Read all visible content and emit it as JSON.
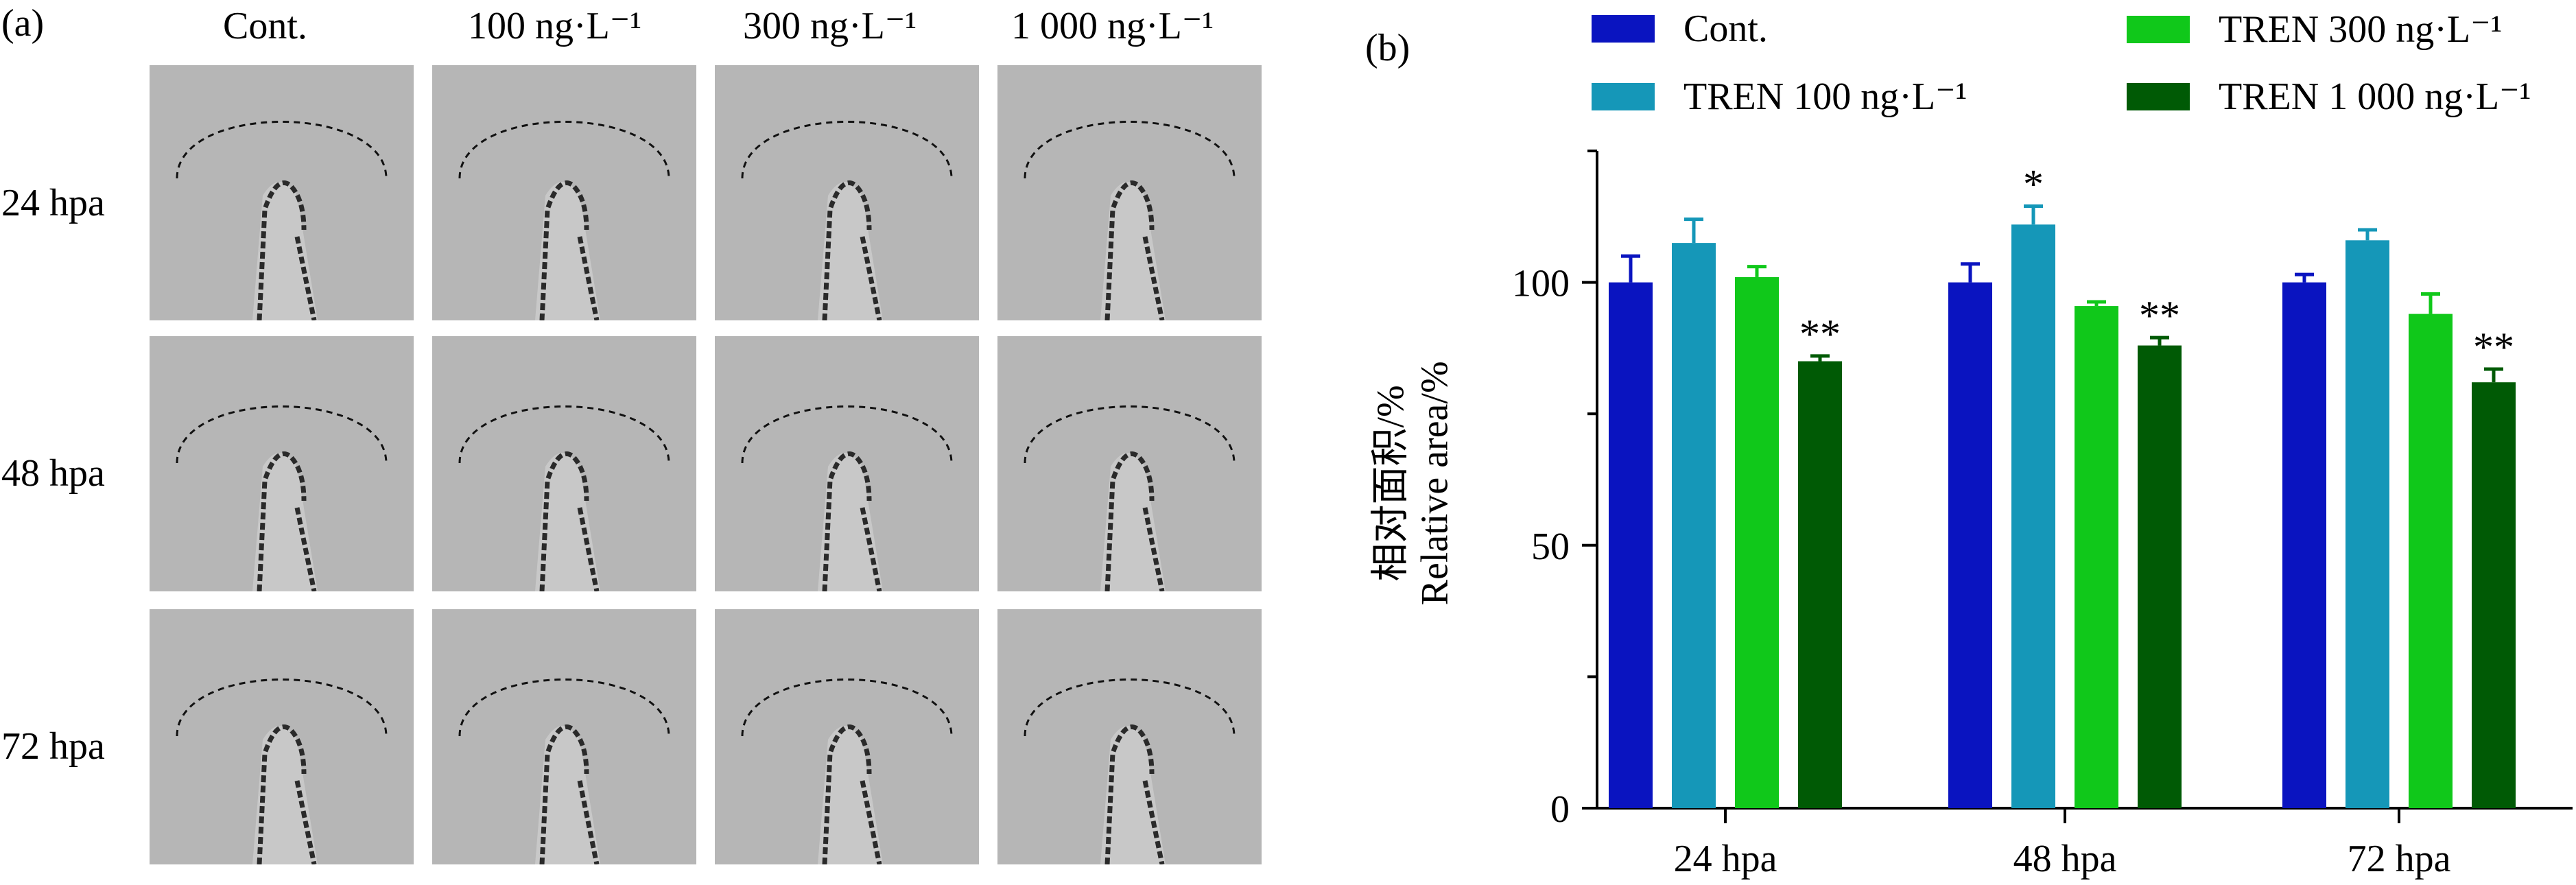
{
  "panel_a": {
    "label": "(a)",
    "columns": [
      "Cont.",
      "100 ng·L⁻¹",
      "300 ng·L⁻¹",
      "1 000 ng·L⁻¹"
    ],
    "rows": [
      "24 hpa",
      "48 hpa",
      "72 hpa"
    ]
  },
  "chart_data": {
    "panel_label": "(b)",
    "type": "bar",
    "categories": [
      "24 hpa",
      "48 hpa",
      "72 hpa"
    ],
    "ylabel_cn": "相对面积/%",
    "ylabel": "Relative area/%",
    "ylim": [
      0,
      125
    ],
    "yticks": [
      0,
      50,
      100
    ],
    "legend_position": "top",
    "series": [
      {
        "name": "Cont.",
        "color": "#0a14c0",
        "values": [
          100,
          100,
          100
        ],
        "errors": [
          5,
          3.5,
          1.5
        ],
        "marks": [
          "",
          "",
          ""
        ]
      },
      {
        "name": "TREN 100 ng·L⁻¹",
        "color": "#1597b8",
        "values": [
          107.5,
          111,
          108
        ],
        "errors": [
          4.5,
          3.5,
          2
        ],
        "marks": [
          "",
          "*",
          ""
        ]
      },
      {
        "name": "TREN 300 ng·L⁻¹",
        "color": "#10c81a",
        "values": [
          101,
          95.5,
          94
        ],
        "errors": [
          2,
          0.8,
          3.8
        ],
        "marks": [
          "",
          "",
          ""
        ]
      },
      {
        "name": "TREN 1 000 ng·L⁻¹",
        "color": "#005a05",
        "values": [
          85,
          88,
          81
        ],
        "errors": [
          1,
          1.5,
          2.5
        ],
        "marks": [
          "**",
          "**",
          "**"
        ]
      }
    ]
  }
}
